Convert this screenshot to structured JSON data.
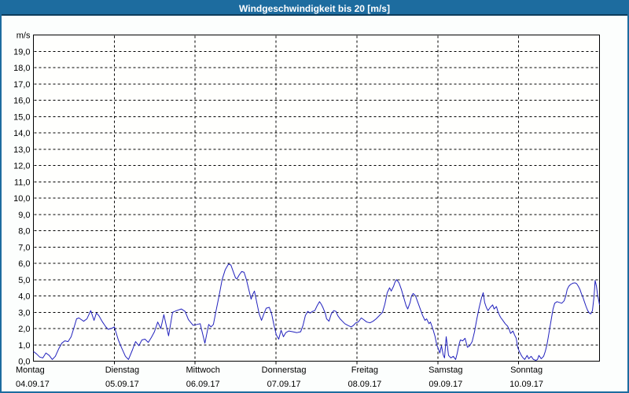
{
  "window": {
    "title": "Windgeschwindigkeit bis 20 [m/s]"
  },
  "colors": {
    "titlebar": "#1d6c9f",
    "titlebar_edge": "#0d3d5c",
    "window_background": "#fcfefd",
    "plot_background": "#fffffd",
    "grid": "#000000",
    "axis": "#000000",
    "line": "#2121bd",
    "title_text": "#ffffff",
    "label_text": "#000000"
  },
  "chart_data": {
    "type": "line",
    "title": "Windgeschwindigkeit bis 20 [m/s]",
    "ylabel": "m/s",
    "ylim": [
      0,
      20
    ],
    "ytick_step": 1,
    "ytick_labels": [
      "0,0",
      "1,0",
      "2,0",
      "3,0",
      "4,0",
      "5,0",
      "6,0",
      "7,0",
      "8,0",
      "9,0",
      "10,0",
      "11,0",
      "12,0",
      "13,0",
      "14,0",
      "15,0",
      "16,0",
      "17,0",
      "18,0",
      "19,0"
    ],
    "grid": "dashed",
    "legend": "none",
    "x_axis_unit": "hours from start of week, 0-168",
    "xlim": [
      0,
      168
    ],
    "day_tick_hours": [
      0,
      24,
      48,
      72,
      96,
      120,
      144
    ],
    "days": [
      {
        "name": "Montag",
        "date": "04.09.17"
      },
      {
        "name": "Dienstag",
        "date": "05.09.17"
      },
      {
        "name": "Mittwoch",
        "date": "06.09.17"
      },
      {
        "name": "Donnerstag",
        "date": "07.09.17"
      },
      {
        "name": "Freitag",
        "date": "08.09.17"
      },
      {
        "name": "Samstag",
        "date": "09.09.17"
      },
      {
        "name": "Sonntag",
        "date": "10.09.17"
      }
    ],
    "series": [
      {
        "name": "Windgeschwindigkeit",
        "unit": "m/s",
        "points": [
          [
            0,
            0.6
          ],
          [
            0.9,
            0.45
          ],
          [
            1.9,
            0.25
          ],
          [
            2.8,
            0.2
          ],
          [
            3.7,
            0.5
          ],
          [
            4.7,
            0.35
          ],
          [
            5.6,
            0.1
          ],
          [
            6.5,
            0.3
          ],
          [
            7.5,
            0.75
          ],
          [
            8.4,
            1.1
          ],
          [
            9.3,
            1.25
          ],
          [
            10.3,
            1.2
          ],
          [
            11.2,
            1.5
          ],
          [
            12.1,
            2.1
          ],
          [
            12.8,
            2.6
          ],
          [
            13.5,
            2.65
          ],
          [
            14.2,
            2.55
          ],
          [
            14.9,
            2.45
          ],
          [
            15.9,
            2.6
          ],
          [
            17,
            3.1
          ],
          [
            18,
            2.5
          ],
          [
            18.7,
            2.95
          ],
          [
            19.4,
            2.8
          ],
          [
            20.5,
            2.4
          ],
          [
            21.5,
            2.1
          ],
          [
            22.2,
            1.95
          ],
          [
            23.1,
            2.0
          ],
          [
            24,
            2.1
          ],
          [
            25.2,
            1.3
          ],
          [
            26.1,
            0.85
          ],
          [
            27.3,
            0.3
          ],
          [
            28.2,
            0.1
          ],
          [
            29.4,
            0.7
          ],
          [
            30.3,
            1.2
          ],
          [
            31.3,
            0.95
          ],
          [
            32.2,
            1.3
          ],
          [
            33.1,
            1.35
          ],
          [
            34.1,
            1.15
          ],
          [
            35,
            1.45
          ],
          [
            35.9,
            1.8
          ],
          [
            36.9,
            2.4
          ],
          [
            37.8,
            2.0
          ],
          [
            38.7,
            2.85
          ],
          [
            40.1,
            1.55
          ],
          [
            41.3,
            3.0
          ],
          [
            42.5,
            3.1
          ],
          [
            43.9,
            3.2
          ],
          [
            45,
            3.05
          ],
          [
            46,
            2.55
          ],
          [
            47.4,
            2.2
          ],
          [
            48.5,
            2.25
          ],
          [
            49.5,
            2.3
          ],
          [
            50.2,
            1.7
          ],
          [
            50.9,
            1.1
          ],
          [
            52,
            2.25
          ],
          [
            52.7,
            2.1
          ],
          [
            53.4,
            2.25
          ],
          [
            54.1,
            3.0
          ],
          [
            55.1,
            4.0
          ],
          [
            56,
            5.0
          ],
          [
            56.9,
            5.6
          ],
          [
            57.9,
            5.95
          ],
          [
            58.6,
            5.9
          ],
          [
            59.3,
            5.5
          ],
          [
            60,
            5.1
          ],
          [
            60.4,
            5.05
          ],
          [
            61.1,
            5.3
          ],
          [
            61.8,
            5.5
          ],
          [
            62.5,
            5.45
          ],
          [
            63.2,
            5.0
          ],
          [
            63.9,
            4.4
          ],
          [
            64.6,
            3.8
          ],
          [
            65.1,
            4.1
          ],
          [
            65.6,
            4.3
          ],
          [
            66.3,
            3.6
          ],
          [
            67,
            2.9
          ],
          [
            67.7,
            2.5
          ],
          [
            68.4,
            2.9
          ],
          [
            69.1,
            3.25
          ],
          [
            70,
            3.3
          ],
          [
            70.7,
            2.9
          ],
          [
            71.4,
            2.2
          ],
          [
            72.1,
            1.6
          ],
          [
            72.8,
            1.35
          ],
          [
            73.5,
            1.9
          ],
          [
            74.2,
            1.5
          ],
          [
            74.9,
            1.75
          ],
          [
            75.8,
            1.85
          ],
          [
            77,
            1.8
          ],
          [
            78.2,
            1.75
          ],
          [
            79.3,
            1.8
          ],
          [
            80,
            2.2
          ],
          [
            80.7,
            2.8
          ],
          [
            81.4,
            3.05
          ],
          [
            82.1,
            2.95
          ],
          [
            82.8,
            3.05
          ],
          [
            83.5,
            3.1
          ],
          [
            84.2,
            3.4
          ],
          [
            84.9,
            3.65
          ],
          [
            85.4,
            3.5
          ],
          [
            85.9,
            3.3
          ],
          [
            86.6,
            2.95
          ],
          [
            87,
            2.6
          ],
          [
            87.7,
            2.45
          ],
          [
            88.4,
            2.9
          ],
          [
            89.1,
            3.1
          ],
          [
            89.8,
            3.05
          ],
          [
            90.3,
            2.8
          ],
          [
            91,
            2.6
          ],
          [
            91.7,
            2.45
          ],
          [
            92.4,
            2.3
          ],
          [
            93.3,
            2.2
          ],
          [
            94.3,
            2.1
          ],
          [
            95,
            2.2
          ],
          [
            95.7,
            2.35
          ],
          [
            96.4,
            2.4
          ],
          [
            97.3,
            2.65
          ],
          [
            98,
            2.55
          ],
          [
            98.9,
            2.4
          ],
          [
            99.9,
            2.35
          ],
          [
            100.8,
            2.45
          ],
          [
            101.7,
            2.6
          ],
          [
            102.7,
            2.8
          ],
          [
            103.6,
            3.0
          ],
          [
            104.3,
            3.5
          ],
          [
            105,
            4.2
          ],
          [
            105.7,
            4.5
          ],
          [
            106.2,
            4.3
          ],
          [
            106.9,
            4.6
          ],
          [
            107.3,
            4.85
          ],
          [
            107.8,
            5.0
          ],
          [
            108.5,
            4.8
          ],
          [
            109.2,
            4.4
          ],
          [
            109.9,
            3.9
          ],
          [
            110.6,
            3.4
          ],
          [
            111.1,
            3.2
          ],
          [
            111.8,
            3.6
          ],
          [
            112.2,
            4.0
          ],
          [
            112.7,
            4.15
          ],
          [
            113.4,
            4.0
          ],
          [
            114.1,
            3.6
          ],
          [
            114.8,
            3.2
          ],
          [
            115.5,
            2.8
          ],
          [
            116.2,
            2.5
          ],
          [
            116.7,
            2.6
          ],
          [
            117.4,
            2.3
          ],
          [
            117.8,
            2.4
          ],
          [
            118.5,
            2.0
          ],
          [
            119.2,
            1.5
          ],
          [
            119.7,
            1.0
          ],
          [
            120.2,
            0.75
          ],
          [
            120.6,
            0.5
          ],
          [
            121.1,
            0.95
          ],
          [
            121.6,
            0.4
          ],
          [
            122,
            0.2
          ],
          [
            122.5,
            1.5
          ],
          [
            123.2,
            0.35
          ],
          [
            123.9,
            0.2
          ],
          [
            124.6,
            0.3
          ],
          [
            125.3,
            0.1
          ],
          [
            125.8,
            0.5
          ],
          [
            126.2,
            0.95
          ],
          [
            126.7,
            1.3
          ],
          [
            127.4,
            1.25
          ],
          [
            128.1,
            1.4
          ],
          [
            128.8,
            0.85
          ],
          [
            129.5,
            0.95
          ],
          [
            130.2,
            1.2
          ],
          [
            130.9,
            1.8
          ],
          [
            131.6,
            2.6
          ],
          [
            132.3,
            3.3
          ],
          [
            133,
            3.9
          ],
          [
            133.5,
            4.2
          ],
          [
            133.9,
            3.6
          ],
          [
            134.4,
            3.3
          ],
          [
            134.9,
            3.1
          ],
          [
            135.6,
            3.3
          ],
          [
            136.3,
            3.45
          ],
          [
            136.7,
            3.2
          ],
          [
            137.4,
            3.35
          ],
          [
            137.9,
            3.0
          ],
          [
            138.6,
            2.7
          ],
          [
            139.3,
            2.5
          ],
          [
            140,
            2.3
          ],
          [
            140.7,
            2.15
          ],
          [
            141.2,
            1.95
          ],
          [
            141.6,
            1.7
          ],
          [
            142.3,
            1.85
          ],
          [
            142.8,
            1.6
          ],
          [
            143.3,
            1.4
          ],
          [
            143.7,
            0.85
          ],
          [
            144.2,
            0.6
          ],
          [
            144.7,
            0.4
          ],
          [
            145.1,
            0.25
          ],
          [
            145.8,
            0.1
          ],
          [
            146.5,
            0.35
          ],
          [
            147,
            0.15
          ],
          [
            147.7,
            0.3
          ],
          [
            148.4,
            0.1
          ],
          [
            149.1,
            0.05
          ],
          [
            149.6,
            0.1
          ],
          [
            150,
            0.35
          ],
          [
            150.7,
            0.15
          ],
          [
            151.4,
            0.3
          ],
          [
            151.9,
            0.6
          ],
          [
            152.4,
            1.0
          ],
          [
            152.8,
            1.5
          ],
          [
            153.3,
            2.1
          ],
          [
            153.8,
            2.7
          ],
          [
            154.2,
            3.2
          ],
          [
            154.7,
            3.55
          ],
          [
            155.4,
            3.65
          ],
          [
            156.1,
            3.6
          ],
          [
            156.8,
            3.55
          ],
          [
            157.5,
            3.7
          ],
          [
            158,
            4.0
          ],
          [
            158.4,
            4.4
          ],
          [
            158.9,
            4.6
          ],
          [
            159.4,
            4.7
          ],
          [
            160.1,
            4.78
          ],
          [
            160.8,
            4.8
          ],
          [
            161.2,
            4.75
          ],
          [
            161.7,
            4.6
          ],
          [
            162.2,
            4.4
          ],
          [
            162.6,
            4.15
          ],
          [
            163.1,
            3.9
          ],
          [
            163.6,
            3.6
          ],
          [
            164,
            3.35
          ],
          [
            164.5,
            3.1
          ],
          [
            165,
            2.95
          ],
          [
            165.4,
            2.9
          ],
          [
            165.9,
            3.1
          ],
          [
            166.4,
            4.0
          ],
          [
            166.7,
            4.95
          ],
          [
            167.1,
            4.6
          ],
          [
            167.4,
            4.1
          ],
          [
            167.8,
            3.7
          ],
          [
            168,
            3.45
          ]
        ]
      }
    ]
  }
}
